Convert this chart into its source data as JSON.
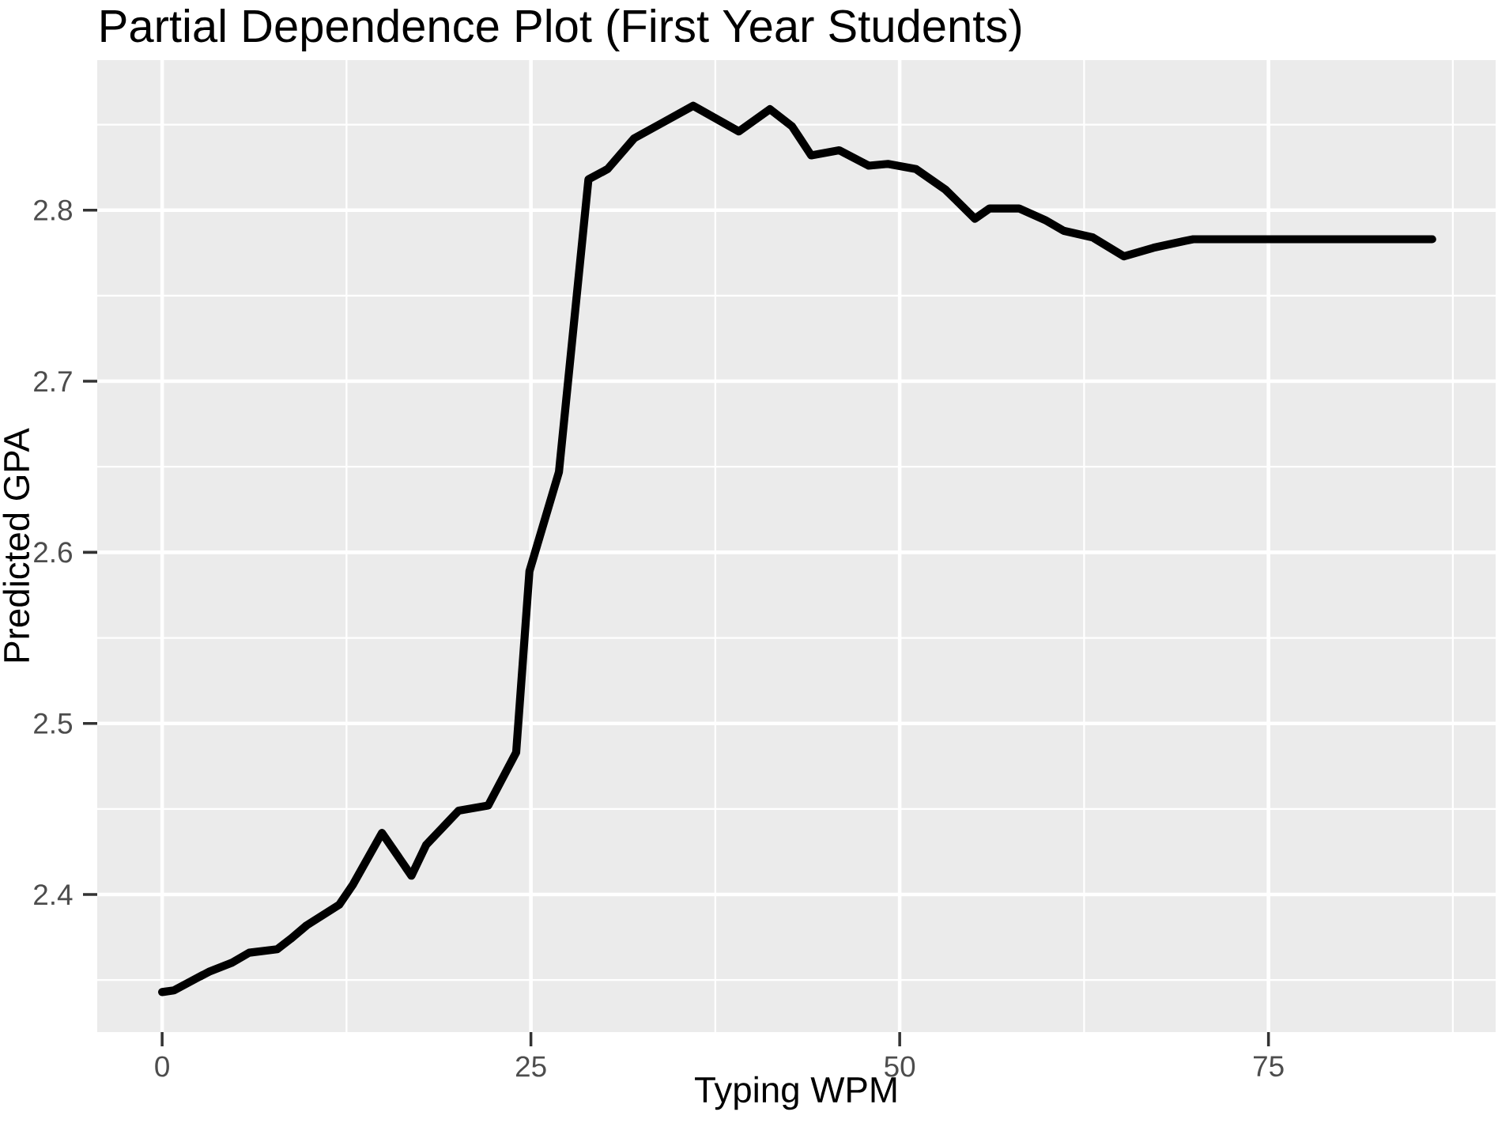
{
  "chart_data": {
    "type": "line",
    "title": "Partial Dependence Plot (First Year Students)",
    "xlabel": "Typing WPM",
    "ylabel": "Predicted GPA",
    "x": [
      0,
      0.8,
      3.2,
      4.7,
      5.9,
      7.8,
      8.7,
      9.8,
      12.0,
      12.95,
      14.9,
      16.9,
      17.9,
      20.1,
      22.1,
      24.0,
      24.9,
      26.9,
      28.9,
      30.2,
      32.0,
      33.9,
      36.0,
      39.1,
      41.2,
      42.7,
      44.0,
      45.9,
      47.9,
      49.2,
      51.1,
      53.1,
      55.1,
      56.1,
      58.1,
      59.9,
      61.1,
      63.1,
      65.2,
      67.2,
      69.3,
      69.9,
      86.1
    ],
    "series": [
      {
        "color": "#000000",
        "values": [
          2.343,
          2.344,
          2.355,
          2.36,
          2.366,
          2.368,
          2.374,
          2.382,
          2.394,
          2.406,
          2.436,
          2.411,
          2.429,
          2.449,
          2.452,
          2.483,
          2.589,
          2.647,
          2.818,
          2.824,
          2.842,
          2.851,
          2.861,
          2.846,
          2.859,
          2.849,
          2.832,
          2.835,
          2.826,
          2.827,
          2.824,
          2.812,
          2.795,
          2.801,
          2.801,
          2.794,
          2.788,
          2.784,
          2.773,
          2.778,
          2.782,
          2.783,
          2.783
        ]
      }
    ],
    "xlim": [
      -4.4,
      90.4
    ],
    "ylim": [
      2.3196,
      2.8877
    ],
    "xticks": [
      0,
      25,
      50,
      75
    ],
    "yticks": [
      2.4,
      2.5,
      2.6,
      2.7,
      2.8
    ],
    "grid": true,
    "marker": "none",
    "line_style": "solid"
  }
}
